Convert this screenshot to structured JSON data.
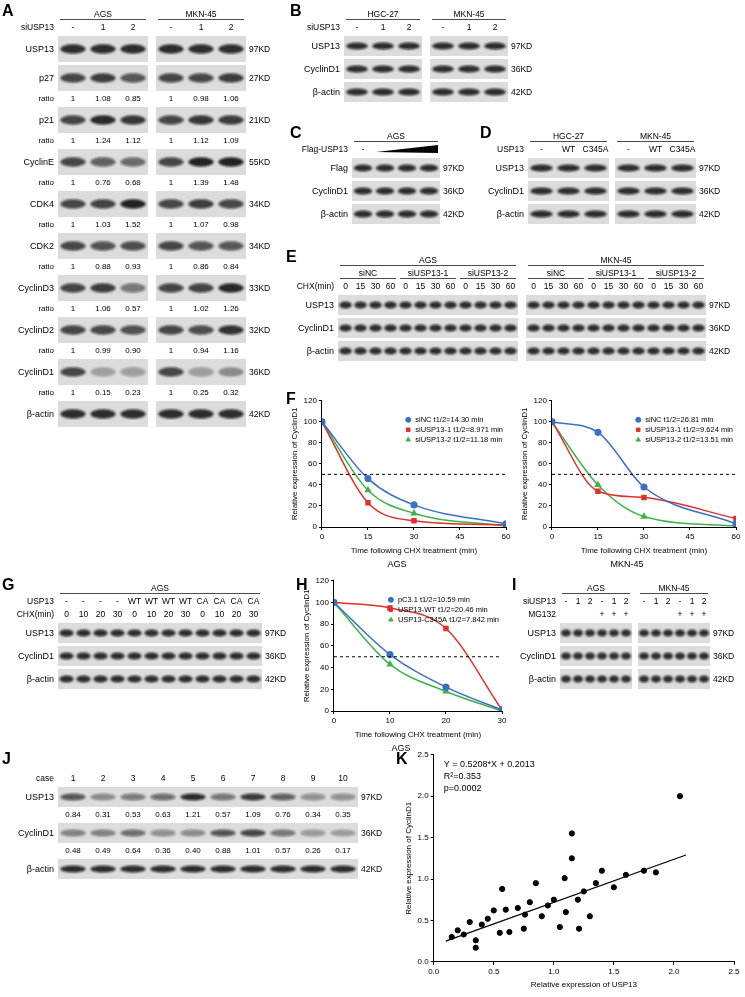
{
  "blots": [
    {
      "panel": "A",
      "split": true,
      "header": [
        {
          "cells": [
            {
              "text": "AGS",
              "span": 3
            },
            {
              "text": "MKN-45",
              "span": 3
            }
          ]
        },
        {
          "label": "siUSP13",
          "cells": [
            "-",
            "1",
            "2",
            "-",
            "1",
            "2"
          ]
        }
      ],
      "ratio_label": "ratio",
      "rows": [
        {
          "name": "USP13",
          "size": "97KD"
        },
        {
          "name": "p27",
          "size": "27KD",
          "ratio": [
            "1",
            "1.08",
            "0.85",
            "1",
            "0.98",
            "1.06"
          ]
        },
        {
          "name": "p21",
          "size": "21KD",
          "ratio": [
            "1",
            "1.24",
            "1.12",
            "1",
            "1.12",
            "1.09"
          ]
        },
        {
          "name": "CyclinE",
          "size": "55KD",
          "ratio": [
            "1",
            "0.76",
            "0.68",
            "1",
            "1.39",
            "1.48"
          ]
        },
        {
          "name": "CDK4",
          "size": "34KD",
          "ratio": [
            "1",
            "1.03",
            "1.52",
            "1",
            "1.07",
            "0.98"
          ]
        },
        {
          "name": "CDK2",
          "size": "34KD",
          "ratio": [
            "1",
            "0.88",
            "0.93",
            "1",
            "0.86",
            "0.84"
          ]
        },
        {
          "name": "CyclinD3",
          "size": "33KD",
          "ratio": [
            "1",
            "1.06",
            "0.57",
            "1",
            "1.02",
            "1.26"
          ]
        },
        {
          "name": "CyclinD2",
          "size": "32KD",
          "ratio": [
            "1",
            "0.99",
            "0.90",
            "1",
            "0.94",
            "1.16"
          ]
        },
        {
          "name": "CyclinD1",
          "size": "36KD",
          "ratio": [
            "1",
            "0.15",
            "0.23",
            "1",
            "0.25",
            "0.32"
          ]
        },
        {
          "name": "β-actin",
          "size": "42KD"
        }
      ]
    },
    {
      "panel": "B",
      "split": true,
      "header": [
        {
          "cells": [
            {
              "text": "HGC-27",
              "span": 3
            },
            {
              "text": "MKN-45",
              "span": 3
            }
          ]
        },
        {
          "label": "siUSP13",
          "cells": [
            "-",
            "1",
            "2",
            "-",
            "1",
            "2"
          ]
        }
      ],
      "rows": [
        {
          "name": "USP13",
          "size": "97KD"
        },
        {
          "name": "CyclinD1",
          "size": "36KD"
        },
        {
          "name": "β-actin",
          "size": "42KD"
        }
      ]
    },
    {
      "panel": "C",
      "split": false,
      "header": [
        {
          "cells": [
            {
              "text": "AGS",
              "span": 4
            }
          ]
        },
        {
          "label": "Flag-USP13",
          "cells": [
            "-",
            null,
            null,
            null
          ],
          "wedge": true
        }
      ],
      "rows": [
        {
          "name": "Flag",
          "size": "97KD"
        },
        {
          "name": "CyclinD1",
          "size": "36KD"
        },
        {
          "name": "β-actin",
          "size": "42KD"
        }
      ]
    },
    {
      "panel": "D",
      "split": true,
      "header": [
        {
          "cells": [
            {
              "text": "HGC-27",
              "span": 3
            },
            {
              "text": "MKN-45",
              "span": 3
            }
          ]
        },
        {
          "label": "USP13",
          "cells": [
            "-",
            "WT",
            "C345A",
            "-",
            "WT",
            "C345A"
          ]
        }
      ],
      "rows": [
        {
          "name": "USP13",
          "size": "97KD"
        },
        {
          "name": "CyclinD1",
          "size": "36KD"
        },
        {
          "name": "β-actin",
          "size": "42KD"
        }
      ]
    },
    {
      "panel": "E",
      "split": true,
      "header": [
        {
          "cells": [
            {
              "text": "AGS",
              "span": 12
            },
            {
              "text": "MKN-45",
              "span": 12
            }
          ]
        },
        {
          "cells": [
            {
              "text": "siNC",
              "span": 4
            },
            {
              "text": "siUSP13-1",
              "span": 4
            },
            {
              "text": "siUSP13-2",
              "span": 4
            },
            {
              "text": "siNC",
              "span": 4
            },
            {
              "text": "siUSP13-1",
              "span": 4
            },
            {
              "text": "siUSP13-2",
              "span": 4
            }
          ]
        },
        {
          "label": "CHX(min)",
          "cells": [
            "0",
            "15",
            "30",
            "60",
            "0",
            "15",
            "30",
            "60",
            "0",
            "15",
            "30",
            "60",
            "0",
            "15",
            "30",
            "60",
            "0",
            "15",
            "30",
            "60",
            "0",
            "15",
            "30",
            "60"
          ]
        }
      ],
      "rows": [
        {
          "name": "USP13",
          "size": "97KD"
        },
        {
          "name": "CyclinD1",
          "size": "36KD"
        },
        {
          "name": "β-actin",
          "size": "42KD"
        }
      ]
    },
    {
      "panel": "G",
      "split": false,
      "header": [
        {
          "cells": [
            {
              "text": "AGS",
              "span": 12
            }
          ]
        },
        {
          "label": "USP13",
          "cells": [
            "-",
            "-",
            "-",
            "-",
            "WT",
            "WT",
            "WT",
            "WT",
            "CA",
            "CA",
            "CA",
            "CA"
          ]
        },
        {
          "label": "CHX(min)",
          "cells": [
            "0",
            "10",
            "20",
            "30",
            "0",
            "10",
            "20",
            "30",
            "0",
            "10",
            "20",
            "30"
          ]
        }
      ],
      "rows": [
        {
          "name": "USP13",
          "size": "97KD"
        },
        {
          "name": "CyclinD1",
          "size": "36KD"
        },
        {
          "name": "β-actin",
          "size": "42KD"
        }
      ]
    },
    {
      "panel": "I",
      "split": true,
      "header": [
        {
          "cells": [
            {
              "text": "AGS",
              "span": 6
            },
            {
              "text": "MKN-45",
              "span": 6
            }
          ]
        },
        {
          "label": "siUSP13",
          "cells": [
            "-",
            "1",
            "2",
            "-",
            "1",
            "2",
            "-",
            "1",
            "2",
            "-",
            "1",
            "2"
          ]
        },
        {
          "label": "MG132",
          "cells": [
            null,
            null,
            null,
            "+",
            "+",
            "+",
            null,
            null,
            null,
            "+",
            "+",
            "+"
          ]
        }
      ],
      "rows": [
        {
          "name": "USP13",
          "size": "97KD"
        },
        {
          "name": "CyclinD1",
          "size": "36KD"
        },
        {
          "name": "β-actin",
          "size": "42KD"
        }
      ]
    },
    {
      "panel": "J",
      "split": false,
      "header": [
        {
          "label": "case",
          "cells": [
            "1",
            "2",
            "3",
            "4",
            "5",
            "6",
            "7",
            "8",
            "9",
            "10"
          ]
        }
      ],
      "rows": [
        {
          "name": "USP13",
          "size": "97KD",
          "ratio": [
            "0.84",
            "0.31",
            "0.53",
            "0.63",
            "1.21",
            "0.57",
            "1.09",
            "0.76",
            "0.34",
            "0.35"
          ]
        },
        {
          "name": "CyclinD1",
          "size": "36KD",
          "ratio": [
            "0.48",
            "0.49",
            "0.64",
            "0.36",
            "0.40",
            "0.88",
            "1.01",
            "0.57",
            "0.26",
            "0.17"
          ]
        },
        {
          "name": "β-actin",
          "size": "42KD"
        }
      ]
    }
  ],
  "chart_data": [
    {
      "panel": "F",
      "type": "line",
      "title": "AGS",
      "x_label": "Time following CHX treatment (min)",
      "y_label": "Relative expression of CyclinD1",
      "x": [
        0,
        15,
        30,
        60
      ],
      "xlim": [
        0,
        60
      ],
      "xticks": [
        0,
        15,
        30,
        45,
        60
      ],
      "ylim": [
        0,
        120
      ],
      "yticks": [
        0,
        20,
        40,
        60,
        80,
        100,
        120
      ],
      "grid": false,
      "legend": "upper right",
      "annotations": [
        {
          "y": 50,
          "line_style": "dashed"
        }
      ],
      "series": [
        {
          "name": "siNC t1/2=14.30 min",
          "color": "#3a6fc4",
          "marker": "circle",
          "values": [
            100,
            46,
            21,
            3
          ]
        },
        {
          "name": "siUSP13-1 t1/2=8.971 min",
          "color": "#e0302a",
          "marker": "square",
          "values": [
            100,
            23,
            6,
            2
          ]
        },
        {
          "name": "siUSP13-2 t1/2=11.18 min",
          "color": "#3cb44b",
          "marker": "triangle",
          "values": [
            100,
            35,
            13,
            1
          ]
        }
      ]
    },
    {
      "panel": "F",
      "type": "line",
      "title": "MKN-45",
      "x_label": "Time following CHX treatment (min)",
      "y_label": "Relative expression of CyclinD1",
      "x": [
        0,
        15,
        30,
        60
      ],
      "xlim": [
        0,
        60
      ],
      "xticks": [
        0,
        15,
        30,
        45,
        60
      ],
      "ylim": [
        0,
        120
      ],
      "yticks": [
        0,
        20,
        40,
        60,
        80,
        100,
        120
      ],
      "grid": false,
      "legend": "upper right",
      "annotations": [
        {
          "y": 50,
          "line_style": "dashed"
        }
      ],
      "series": [
        {
          "name": "siNC t1/2=26.81 min",
          "color": "#3a6fc4",
          "marker": "circle",
          "values": [
            100,
            90,
            38,
            3
          ]
        },
        {
          "name": "siUSP13-1 t1/2=9.624 min",
          "color": "#e0302a",
          "marker": "square",
          "values": [
            100,
            34,
            28,
            8
          ]
        },
        {
          "name": "siUSP13-2 t1/2=13.51 min",
          "color": "#3cb44b",
          "marker": "triangle",
          "values": [
            100,
            40,
            10,
            1
          ]
        }
      ]
    },
    {
      "panel": "H",
      "type": "line",
      "title": "AGS",
      "x_label": "Time following CHX treatment (min)",
      "y_label": "Relative expression of CyclinD1",
      "x": [
        0,
        10,
        20,
        30
      ],
      "xlim": [
        0,
        30
      ],
      "xticks": [
        0,
        10,
        20,
        30
      ],
      "ylim": [
        0,
        120
      ],
      "yticks": [
        0,
        20,
        40,
        60,
        80,
        100,
        120
      ],
      "grid": false,
      "legend": "upper right",
      "annotations": [
        {
          "y": 50,
          "line_style": "dashed"
        }
      ],
      "series": [
        {
          "name": "pC3.1 t1/2=10.59 min",
          "color": "#3a6fc4",
          "marker": "circle",
          "values": [
            100,
            52,
            22,
            1
          ]
        },
        {
          "name": "USP13-WT t1/2=20.46 min",
          "color": "#e0302a",
          "marker": "square",
          "values": [
            100,
            95,
            76,
            1
          ]
        },
        {
          "name": "USP13-C345A t1/2=7.842 min",
          "color": "#3cb44b",
          "marker": "triangle",
          "values": [
            100,
            43,
            18,
            0
          ]
        }
      ]
    },
    {
      "panel": "K",
      "type": "scatter",
      "x_label": "Relative expression of USP13",
      "y_label": "Relative expression of CyclinD1",
      "xlim": [
        0,
        2.5
      ],
      "xticks": [
        {
          "value": 0,
          "label": "0.0"
        },
        0.5,
        {
          "value": 1,
          "label": "1.0"
        },
        1.5,
        {
          "value": 2,
          "label": "2.0"
        },
        2.5
      ],
      "ylim": [
        0,
        2.5
      ],
      "yticks": [
        {
          "value": 0,
          "label": "0.0"
        },
        0.5,
        {
          "value": 1,
          "label": "1.0"
        },
        1.5,
        {
          "value": 2,
          "label": "2.0"
        },
        2.5
      ],
      "grid": false,
      "color": "#000000",
      "marker": "circle",
      "x": [
        0.15,
        0.2,
        0.25,
        0.3,
        0.35,
        0.35,
        0.4,
        0.45,
        0.5,
        0.55,
        0.57,
        0.6,
        0.63,
        0.7,
        0.75,
        0.76,
        0.8,
        0.85,
        0.9,
        0.95,
        1.0,
        1.05,
        1.09,
        1.1,
        1.15,
        1.15,
        1.2,
        1.21,
        1.25,
        1.3,
        1.35,
        1.4,
        1.5,
        1.6,
        1.75,
        1.85,
        2.05
      ],
      "values": [
        0.3,
        0.38,
        0.33,
        0.48,
        0.26,
        0.17,
        0.45,
        0.52,
        0.62,
        0.35,
        0.88,
        0.63,
        0.36,
        0.65,
        0.4,
        0.57,
        0.72,
        0.95,
        0.55,
        0.68,
        0.75,
        0.42,
        1.01,
        0.6,
        1.25,
        1.55,
        0.75,
        0.4,
        0.85,
        0.55,
        0.95,
        1.1,
        0.9,
        1.05,
        1.1,
        1.08,
        2.0
      ],
      "fit": {
        "x": [
          0.1,
          2.1
        ],
        "y": [
          0.25,
          1.29
        ]
      },
      "annotations": [
        {
          "text": "Y = 0.5208*X + 0.2013"
        },
        {
          "text": "R²=0.353"
        },
        {
          "text": "p=0.0002"
        }
      ]
    }
  ]
}
